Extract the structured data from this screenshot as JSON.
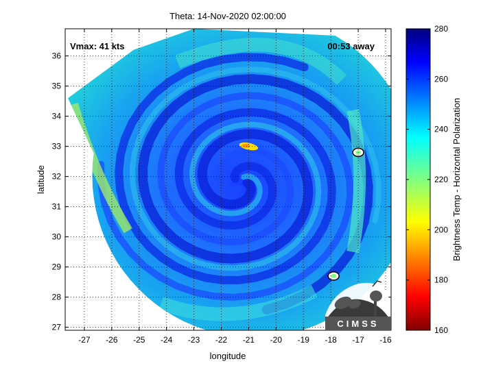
{
  "chart_data": {
    "type": "heatmap",
    "title": "Theta: 14-Nov-2020 02:00:00",
    "xlabel": "longitude",
    "ylabel": "latitude",
    "xlim": [
      -27.7,
      -15.8
    ],
    "ylim": [
      26.9,
      36.9
    ],
    "xticks": [
      -27,
      -26,
      -25,
      -24,
      -23,
      -22,
      -21,
      -20,
      -19,
      -18,
      -17,
      -16
    ],
    "yticks": [
      27,
      28,
      29,
      30,
      31,
      32,
      33,
      34,
      35,
      36
    ],
    "grid": true,
    "annotations": {
      "vmax": "Vmax: 41 kts",
      "time_away": "00:53 away"
    },
    "colorbar": {
      "label": "Brightness Temp - Horizontal Polarization",
      "range": [
        160,
        280
      ],
      "ticks": [
        160,
        180,
        200,
        220,
        240,
        260,
        280
      ],
      "colormap": "jet"
    },
    "storm_center": {
      "lon": -21.3,
      "lat": 31.8
    },
    "warm_features": [
      {
        "lon": -21.0,
        "lat": 33.0,
        "value": 205
      },
      {
        "lon": -17.0,
        "lat": 32.8,
        "value": 225
      },
      {
        "lon": -17.9,
        "lat": 28.7,
        "value": 225
      }
    ]
  },
  "logo": {
    "text": "CIMSS"
  }
}
